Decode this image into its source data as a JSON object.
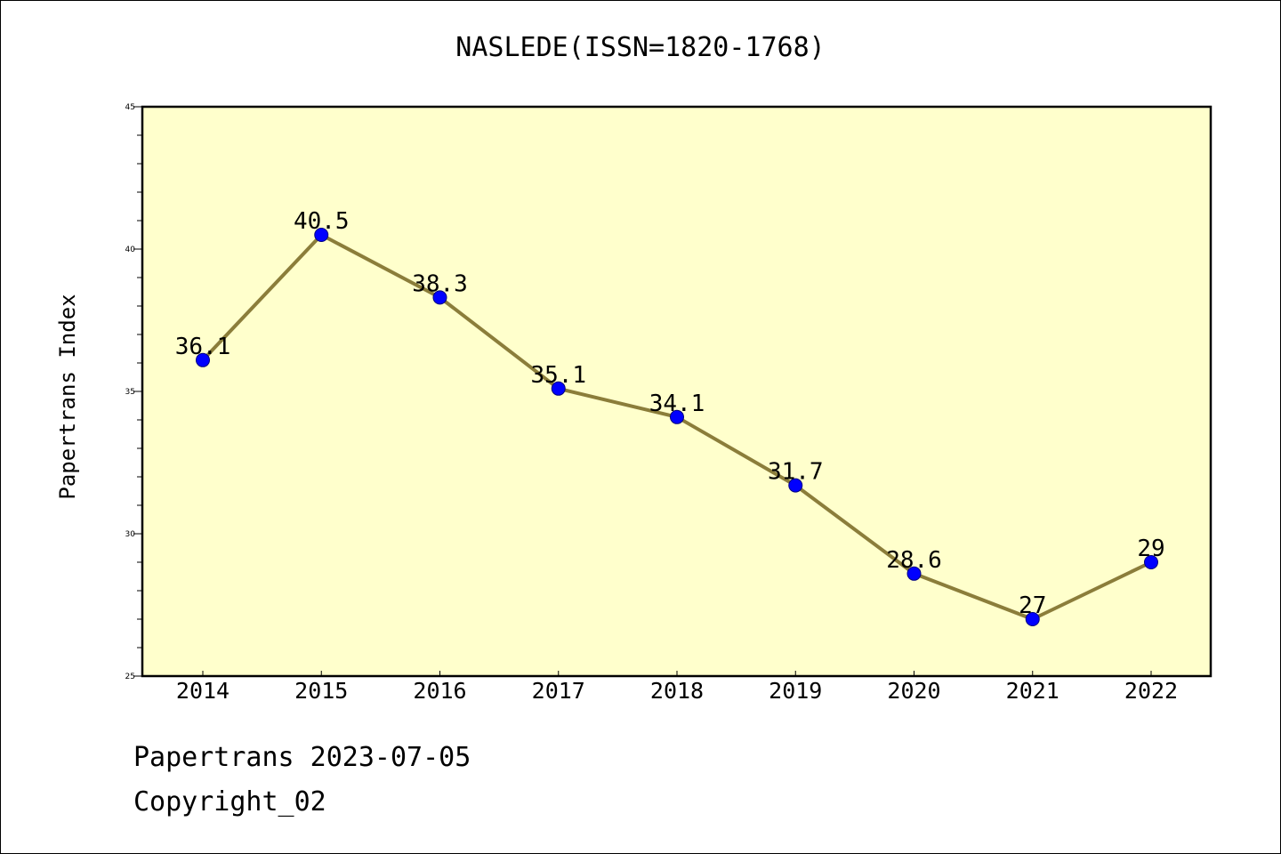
{
  "chart_data": {
    "type": "line",
    "title": "NASLEDE(ISSN=1820-1768)",
    "xlabel": "",
    "ylabel": "Papertrans Index",
    "categories": [
      "2014",
      "2015",
      "2016",
      "2017",
      "2018",
      "2019",
      "2020",
      "2021",
      "2022"
    ],
    "series": [
      {
        "values": [
          36.1,
          40.5,
          38.3,
          35.1,
          34.1,
          31.7,
          28.6,
          27,
          29
        ]
      }
    ],
    "data_labels": [
      "36.1",
      "40.5",
      "38.3",
      "35.1",
      "34.1",
      "31.7",
      "28.6",
      "27",
      "29"
    ],
    "ylim": [
      25,
      45
    ],
    "yticks": [
      "25",
      "30",
      "35",
      "40",
      "45"
    ],
    "grid": false,
    "legend": "none",
    "colors": {
      "plot_background": "#ffffcc",
      "line": "#8b7d3a",
      "marker": "#0000ff"
    }
  },
  "footer": {
    "line1": "Papertrans 2023-07-05",
    "line2": "Copyright_02"
  }
}
